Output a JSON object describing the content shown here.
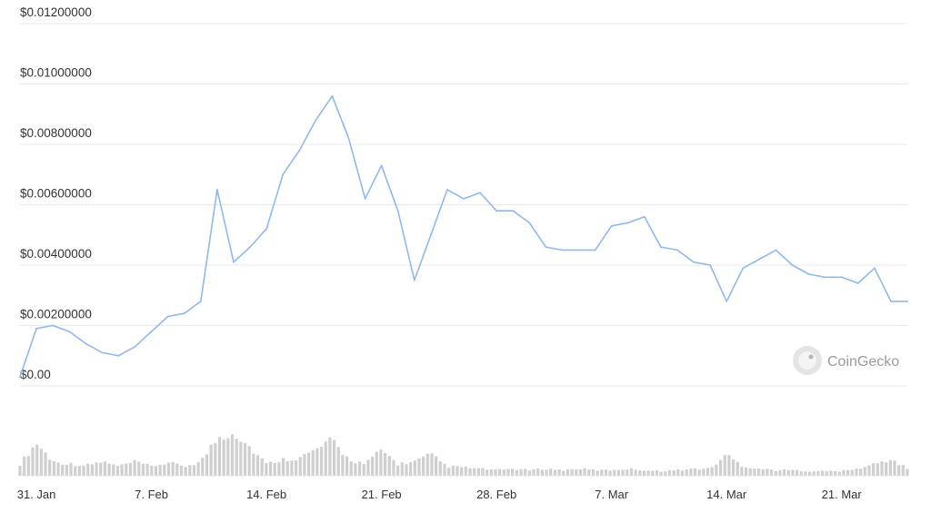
{
  "chart_data": {
    "type": "line",
    "watermark": "CoinGecko",
    "colors": {
      "price_line": "#8fb8ee",
      "volume_bars": "#cfcfcf"
    },
    "y_axis": {
      "ticks": [
        "$0.00",
        "$0.00200000",
        "$0.00400000",
        "$0.00600000",
        "$0.00800000",
        "$0.01000000",
        "$0.01200000"
      ],
      "ylim": [
        0,
        0.012
      ]
    },
    "x_axis": {
      "ticks": [
        "31. Jan",
        "7. Feb",
        "14. Feb",
        "21. Feb",
        "28. Feb",
        "7. Mar",
        "14. Mar",
        "21. Mar"
      ],
      "range": [
        "2022-01-30",
        "2022-03-25"
      ]
    },
    "price_series": {
      "x": [
        "2022-01-30",
        "2022-01-31",
        "2022-02-01",
        "2022-02-02",
        "2022-02-03",
        "2022-02-04",
        "2022-02-05",
        "2022-02-06",
        "2022-02-07",
        "2022-02-08",
        "2022-02-09",
        "2022-02-10",
        "2022-02-11",
        "2022-02-12",
        "2022-02-13",
        "2022-02-14",
        "2022-02-15",
        "2022-02-16",
        "2022-02-17",
        "2022-02-18",
        "2022-02-19",
        "2022-02-20",
        "2022-02-21",
        "2022-02-22",
        "2022-02-23",
        "2022-02-24",
        "2022-02-25",
        "2022-02-26",
        "2022-02-27",
        "2022-02-28",
        "2022-03-01",
        "2022-03-02",
        "2022-03-03",
        "2022-03-04",
        "2022-03-05",
        "2022-03-06",
        "2022-03-07",
        "2022-03-08",
        "2022-03-09",
        "2022-03-10",
        "2022-03-11",
        "2022-03-12",
        "2022-03-13",
        "2022-03-14",
        "2022-03-15",
        "2022-03-16",
        "2022-03-17",
        "2022-03-18",
        "2022-03-19",
        "2022-03-20",
        "2022-03-21",
        "2022-03-22",
        "2022-03-23",
        "2022-03-24",
        "2022-03-25"
      ],
      "y": [
        0.0003,
        0.0019,
        0.002,
        0.0018,
        0.0014,
        0.0011,
        0.001,
        0.0013,
        0.0018,
        0.0023,
        0.0024,
        0.0028,
        0.0065,
        0.0041,
        0.0046,
        0.0052,
        0.007,
        0.0078,
        0.0088,
        0.0096,
        0.0082,
        0.0062,
        0.0073,
        0.0058,
        0.0035,
        0.005,
        0.0065,
        0.0062,
        0.0064,
        0.0058,
        0.0058,
        0.0054,
        0.0046,
        0.0045,
        0.0045,
        0.0045,
        0.0053,
        0.0054,
        0.0056,
        0.0046,
        0.0045,
        0.0041,
        0.004,
        0.0028,
        0.0039,
        0.0042,
        0.0045,
        0.004,
        0.0037,
        0.0036,
        0.0036,
        0.0034,
        0.0039,
        0.0028,
        0.0028
      ]
    },
    "volume_series": {
      "x": [
        "2022-01-30",
        "2022-01-31",
        "2022-02-01",
        "2022-02-02",
        "2022-02-03",
        "2022-02-04",
        "2022-02-05",
        "2022-02-06",
        "2022-02-07",
        "2022-02-08",
        "2022-02-09",
        "2022-02-10",
        "2022-02-11",
        "2022-02-12",
        "2022-02-13",
        "2022-02-14",
        "2022-02-15",
        "2022-02-16",
        "2022-02-17",
        "2022-02-18",
        "2022-02-19",
        "2022-02-20",
        "2022-02-21",
        "2022-02-22",
        "2022-02-23",
        "2022-02-24",
        "2022-02-25",
        "2022-02-26",
        "2022-02-27",
        "2022-02-28",
        "2022-03-01",
        "2022-03-02",
        "2022-03-03",
        "2022-03-04",
        "2022-03-05",
        "2022-03-06",
        "2022-03-07",
        "2022-03-08",
        "2022-03-09",
        "2022-03-10",
        "2022-03-11",
        "2022-03-12",
        "2022-03-13",
        "2022-03-14",
        "2022-03-15",
        "2022-03-16",
        "2022-03-17",
        "2022-03-18",
        "2022-03-19",
        "2022-03-20",
        "2022-03-21",
        "2022-03-22",
        "2022-03-23",
        "2022-03-24",
        "2022-03-25"
      ],
      "y": [
        0.25,
        0.7,
        0.3,
        0.25,
        0.22,
        0.3,
        0.2,
        0.3,
        0.2,
        0.28,
        0.2,
        0.3,
        0.8,
        0.95,
        0.6,
        0.25,
        0.35,
        0.38,
        0.55,
        0.75,
        0.35,
        0.25,
        0.55,
        0.25,
        0.3,
        0.45,
        0.2,
        0.18,
        0.15,
        0.12,
        0.15,
        0.12,
        0.15,
        0.12,
        0.15,
        0.12,
        0.12,
        0.15,
        0.12,
        0.1,
        0.12,
        0.15,
        0.15,
        0.45,
        0.2,
        0.15,
        0.12,
        0.12,
        0.1,
        0.1,
        0.1,
        0.15,
        0.25,
        0.35,
        0.15
      ]
    }
  }
}
